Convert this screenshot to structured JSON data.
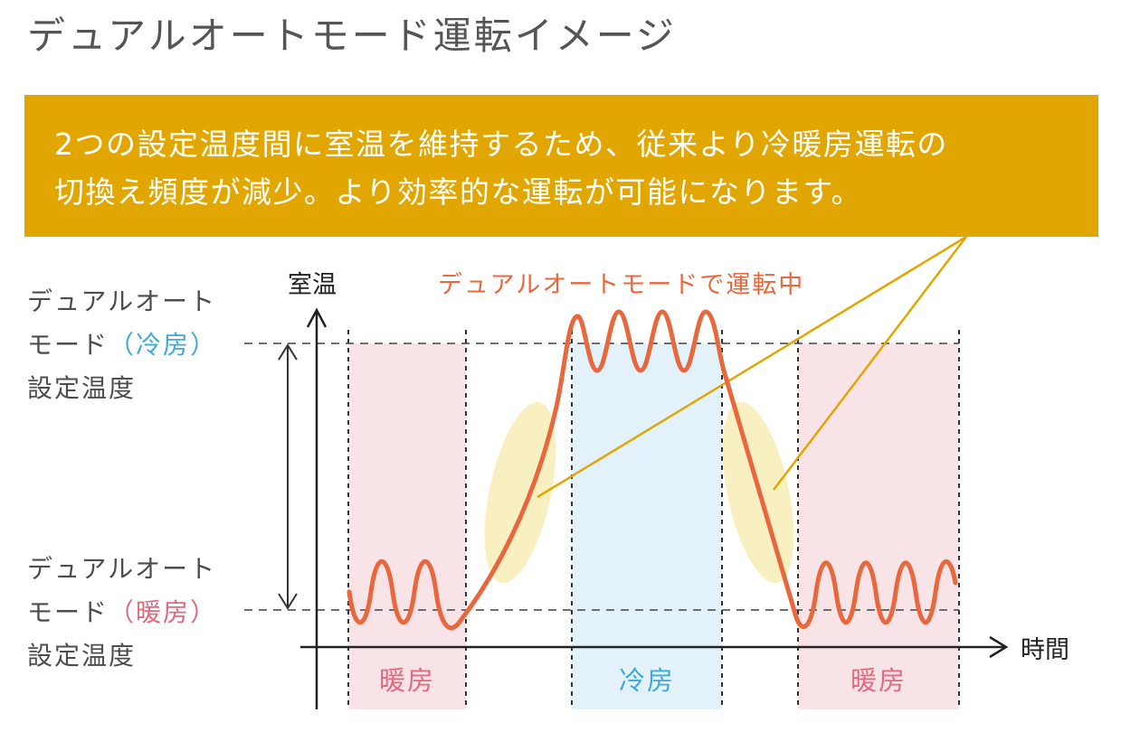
{
  "title": "デュアルオートモード運転イメージ",
  "banner": {
    "line1": "2つの設定温度間に室温を維持するため、従来より冷暖房運転の",
    "line2": "切換え頻度が減少。より効率的な運転が可能になります。"
  },
  "axes": {
    "y_label": "室温",
    "x_label": "時間"
  },
  "mode_caption": "デュアルオートモードで運転中",
  "cooling_setpoint": {
    "line1": "デュアルオート",
    "prefix": "モード",
    "mode": "（冷房）",
    "line3": "設定温度"
  },
  "heating_setpoint": {
    "line1": "デュアルオート",
    "prefix": "モード",
    "mode": "（暖房）",
    "line3": "設定温度"
  },
  "zones": {
    "heat_left": "暖房",
    "cool": "冷房",
    "heat_right": "暖房"
  },
  "colors": {
    "banner": "#e1a600",
    "curve": "#e8673c",
    "heat_zone": "#f8e4e6",
    "cool_zone": "#e3f2fa",
    "highlight": "#f8f0c0",
    "callout_line": "#e1a600"
  }
}
